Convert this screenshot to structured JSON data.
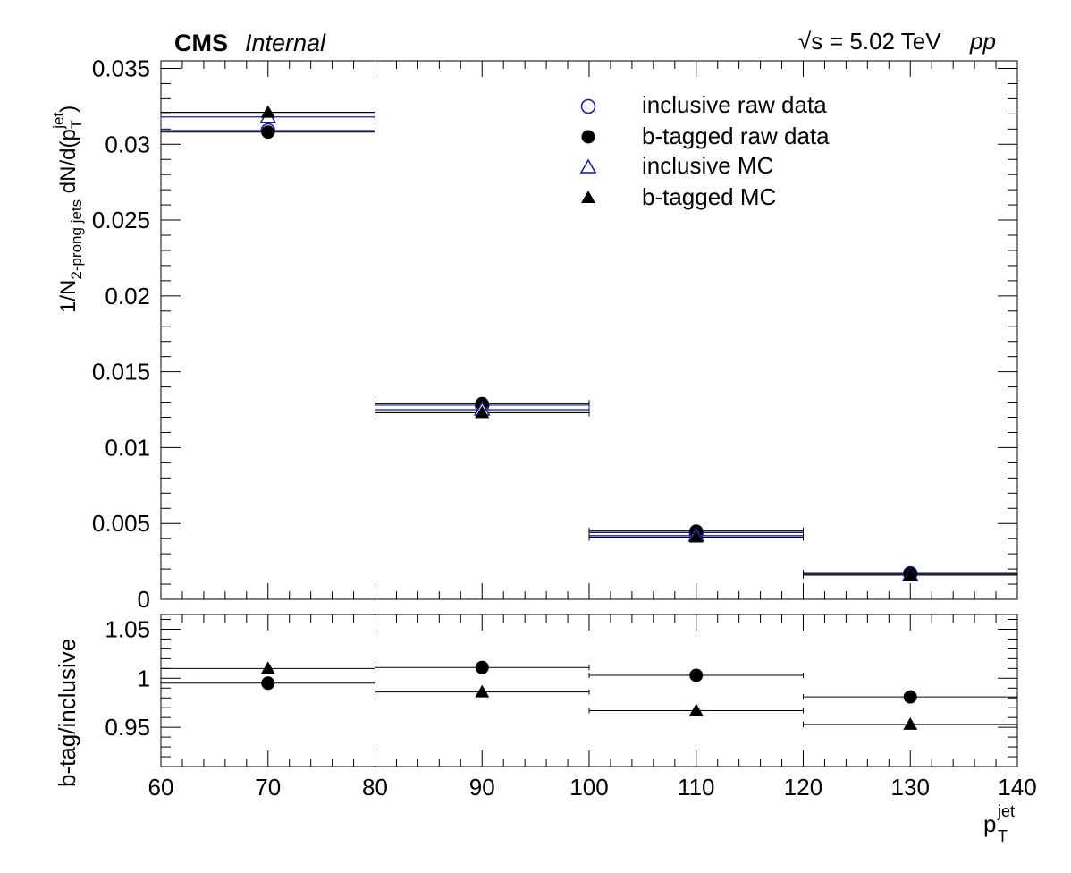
{
  "header": {
    "experiment": "CMS",
    "status": "Internal",
    "sqrt_s_symbol": "√s",
    "energy": "= 5.02 TeV",
    "collision": "pp"
  },
  "colors": {
    "inclusive": "#1a1a8c",
    "btagged": "#000000"
  },
  "legend": [
    {
      "label": "inclusive raw data",
      "marker": "open-circle"
    },
    {
      "label": "b-tagged raw data",
      "marker": "filled-circle"
    },
    {
      "label": "inclusive MC",
      "marker": "open-triangle"
    },
    {
      "label": "b-tagged MC",
      "marker": "filled-triangle"
    }
  ],
  "axis_labels": {
    "x_main": "p",
    "x_sub": "T",
    "x_sup": "jet",
    "y_top_prefix": "1/N",
    "y_top_sub": "2-prong jets",
    "y_top_mid": " dN/d(p",
    "y_top_sub2": "T",
    "y_top_sup": "jet",
    "y_top_suffix": ")",
    "y_bottom": "b-tag/inclusive"
  },
  "chart_data": [
    {
      "type": "scatter",
      "panel": "main",
      "x": [
        70,
        90,
        110,
        130
      ],
      "bin_edges": [
        60,
        80,
        100,
        120,
        140
      ],
      "xlim": [
        60,
        140
      ],
      "ylim": [
        0,
        0.0355
      ],
      "x_ticks": [
        "60",
        "70",
        "80",
        "90",
        "100",
        "110",
        "120",
        "130",
        "140"
      ],
      "y_ticks": [
        "0",
        "0.005",
        "0.01",
        "0.015",
        "0.02",
        "0.025",
        "0.03",
        "0.035"
      ],
      "y_tick_values": [
        0,
        0.005,
        0.01,
        0.015,
        0.02,
        0.025,
        0.03,
        0.035
      ],
      "series": [
        {
          "name": "inclusive raw data",
          "marker": "open-circle",
          "values": [
            0.0309,
            0.0128,
            0.0044,
            0.0017
          ]
        },
        {
          "name": "b-tagged raw data",
          "marker": "filled-circle",
          "values": [
            0.0308,
            0.0129,
            0.0045,
            0.0017
          ]
        },
        {
          "name": "inclusive MC",
          "marker": "open-triangle",
          "values": [
            0.0318,
            0.0125,
            0.0042,
            0.0016
          ]
        },
        {
          "name": "b-tagged MC",
          "marker": "filled-triangle",
          "values": [
            0.0321,
            0.0123,
            0.0041,
            0.0016
          ]
        }
      ],
      "grid": false
    },
    {
      "type": "scatter",
      "panel": "ratio",
      "x": [
        70,
        90,
        110,
        130
      ],
      "bin_edges": [
        60,
        80,
        100,
        120,
        140
      ],
      "xlim": [
        60,
        140
      ],
      "ylim": [
        0.91,
        1.065
      ],
      "y_ticks": [
        "0.95",
        "1",
        "1.05"
      ],
      "y_tick_values": [
        0.95,
        1.0,
        1.05
      ],
      "series": [
        {
          "name": "b-tagged raw data",
          "marker": "filled-circle",
          "values": [
            0.995,
            1.011,
            1.003,
            0.981
          ]
        },
        {
          "name": "b-tagged MC",
          "marker": "filled-triangle",
          "values": [
            1.01,
            0.986,
            0.967,
            0.953
          ]
        }
      ],
      "grid": false
    }
  ]
}
